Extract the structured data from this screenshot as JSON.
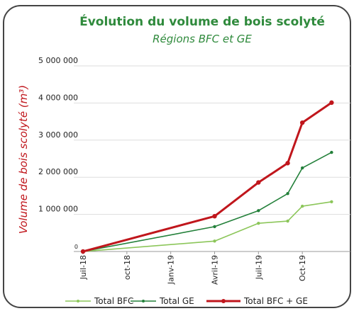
{
  "chart_data": {
    "type": "line",
    "title": "Évolution du volume de bois scolyté",
    "subtitle": "Régions BFC et GE",
    "y_label": "Volume de bois scolyté (m³)",
    "xlim": [
      -0.5,
      18
    ],
    "xticks": [
      {
        "value": 0,
        "label": "Juil-18"
      },
      {
        "value": 3,
        "label": "oct-18"
      },
      {
        "value": 6,
        "label": "Janv-19"
      },
      {
        "value": 9,
        "label": "Avril-19"
      },
      {
        "value": 12,
        "label": "Juil-19"
      },
      {
        "value": 15,
        "label": "Oct-19"
      }
    ],
    "ylim": [
      0,
      5000000
    ],
    "yticks": [
      0,
      {
        "value": 1000000,
        "label": "1 000 000"
      },
      {
        "value": 2000000,
        "label": "2 000 000"
      },
      {
        "value": 3000000,
        "label": "3 000 000"
      },
      {
        "value": 4000000,
        "label": "4 000 000"
      },
      {
        "value": 5000000,
        "label": "5 000 000"
      }
    ],
    "grid": true,
    "legend": "bottom",
    "x": [
      0,
      9,
      12,
      14,
      15,
      17
    ],
    "series": [
      {
        "name": "Total BFC",
        "color": "#8cc65a",
        "values": [
          0,
          280000,
          760000,
          820000,
          1220000,
          1340000
        ]
      },
      {
        "name": "Total GE",
        "color": "#23803a",
        "values": [
          0,
          670000,
          1100000,
          1560000,
          2250000,
          2670000
        ]
      },
      {
        "name": "Total BFC + GE",
        "color": "#c0161c",
        "values": [
          0,
          950000,
          1860000,
          2380000,
          3470000,
          4010000
        ]
      }
    ]
  }
}
